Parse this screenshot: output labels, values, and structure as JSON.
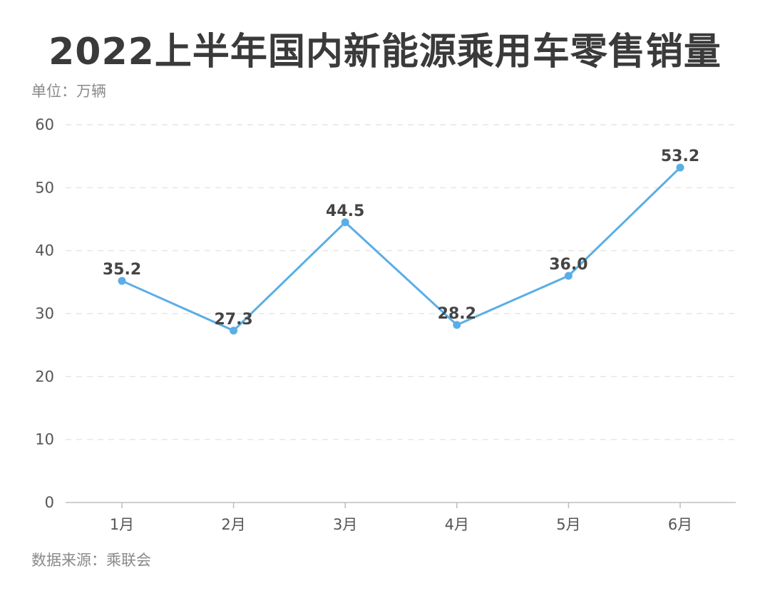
{
  "chart_data": {
    "type": "line",
    "title": "2022上半年国内新能源乘用车零售销量",
    "unit_label": "单位：万辆",
    "source": "数据来源：乘联会",
    "categories": [
      "1月",
      "2月",
      "3月",
      "4月",
      "5月",
      "6月"
    ],
    "series": [
      {
        "values": [
          35.2,
          27.3,
          44.5,
          28.2,
          36.0,
          53.2
        ],
        "labels": [
          "35.2",
          "27.3",
          "44.5",
          "28.2",
          "36.0",
          "53.2"
        ]
      }
    ],
    "ylim": [
      0,
      60
    ],
    "yticks": [
      "0",
      "10",
      "20",
      "30",
      "40",
      "50",
      "60"
    ],
    "grid": true,
    "line_color": "#5aaee6"
  }
}
